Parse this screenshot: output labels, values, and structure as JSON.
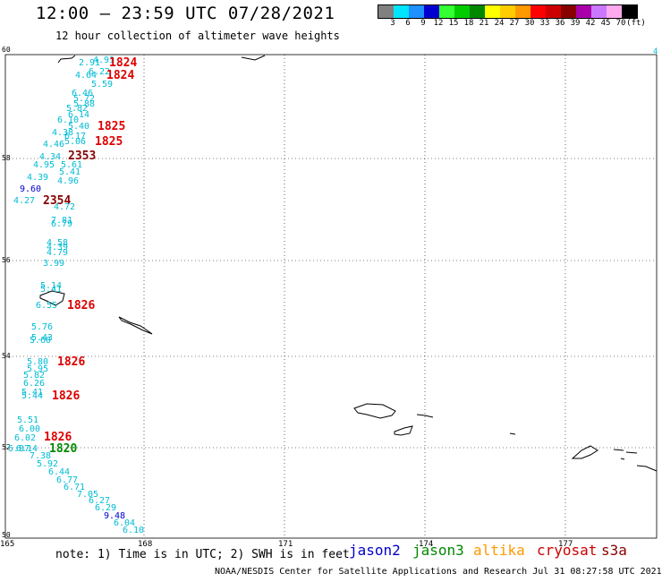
{
  "title": "12:00 – 23:59 UTC 07/28/2021",
  "subtitle": "12 hour collection of altimeter wave heights",
  "colorbar": {
    "colors": [
      "#808080",
      "#00e5ff",
      "#1e90ff",
      "#0000d0",
      "#33ff33",
      "#00cc00",
      "#008800",
      "#ffff00",
      "#ffcc00",
      "#ff9900",
      "#ff0000",
      "#cc0000",
      "#880000",
      "#aa00aa",
      "#cc77ff",
      "#ffaaee",
      "#000000"
    ],
    "labels": [
      "3",
      "6",
      "9",
      "12",
      "15",
      "18",
      "21",
      "24",
      "27",
      "30",
      "33",
      "36",
      "39",
      "42",
      "45",
      "70",
      "(ft)"
    ]
  },
  "axes": {
    "lat_labels": [
      "60",
      "58",
      "56",
      "54",
      "52",
      "50"
    ],
    "lon_labels": [
      "165",
      "168",
      "171",
      "174",
      "177"
    ]
  },
  "edge_label": "4",
  "observations": [
    {
      "text": "2.91",
      "color": "#00bcd4"
    },
    {
      "text": "4.91",
      "color": "#00bcd4"
    },
    {
      "text": "1824",
      "color": "#dd0000"
    },
    {
      "text": "6.22",
      "color": "#00bcd4"
    },
    {
      "text": "4.64",
      "color": "#00bcd4"
    },
    {
      "text": "1824",
      "color": "#dd0000"
    },
    {
      "text": "5.59",
      "color": "#00bcd4"
    },
    {
      "text": "6.46",
      "color": "#00bcd4"
    },
    {
      "text": "5.72",
      "color": "#00bcd4"
    },
    {
      "text": "5.88",
      "color": "#00bcd4"
    },
    {
      "text": "5.82",
      "color": "#00bcd4"
    },
    {
      "text": "6.14",
      "color": "#00bcd4"
    },
    {
      "text": "6.10",
      "color": "#00bcd4"
    },
    {
      "text": "5.40",
      "color": "#00bcd4"
    },
    {
      "text": "1825",
      "color": "#dd0000"
    },
    {
      "text": "4.38",
      "color": "#00bcd4"
    },
    {
      "text": "6.17",
      "color": "#00bcd4"
    },
    {
      "text": "4.46",
      "color": "#00bcd4"
    },
    {
      "text": "5.06",
      "color": "#00bcd4"
    },
    {
      "text": "1825",
      "color": "#dd0000"
    },
    {
      "text": "4.34",
      "color": "#00bcd4"
    },
    {
      "text": "2353",
      "color": "#880000"
    },
    {
      "text": "4.95",
      "color": "#00bcd4"
    },
    {
      "text": "5.61",
      "color": "#00bcd4"
    },
    {
      "text": "5.41",
      "color": "#00bcd4"
    },
    {
      "text": "4.39",
      "color": "#00bcd4"
    },
    {
      "text": "4.96",
      "color": "#00bcd4"
    },
    {
      "text": "9.60",
      "color": "#0000d0"
    },
    {
      "text": "4.27",
      "color": "#00bcd4"
    },
    {
      "text": "2354",
      "color": "#880000"
    },
    {
      "text": "4.72",
      "color": "#00bcd4"
    },
    {
      "text": "7.81",
      "color": "#00bcd4"
    },
    {
      "text": "6.79",
      "color": "#00bcd4"
    },
    {
      "text": "4.58",
      "color": "#00bcd4"
    },
    {
      "text": "4.39",
      "color": "#00bcd4"
    },
    {
      "text": "4.79",
      "color": "#00bcd4"
    },
    {
      "text": "3.99",
      "color": "#00bcd4"
    },
    {
      "text": "5.14",
      "color": "#00bcd4"
    },
    {
      "text": "5.41",
      "color": "#00bcd4"
    },
    {
      "text": "6.55",
      "color": "#00bcd4"
    },
    {
      "text": "1826",
      "color": "#dd0000"
    },
    {
      "text": "5.76",
      "color": "#00bcd4"
    },
    {
      "text": "5.43",
      "color": "#00bcd4"
    },
    {
      "text": "5.60",
      "color": "#00bcd4"
    },
    {
      "text": "5.80",
      "color": "#00bcd4"
    },
    {
      "text": "1826",
      "color": "#dd0000"
    },
    {
      "text": "5.95",
      "color": "#00bcd4"
    },
    {
      "text": "5.82",
      "color": "#00bcd4"
    },
    {
      "text": "6.26",
      "color": "#00bcd4"
    },
    {
      "text": "5.41",
      "color": "#00bcd4"
    },
    {
      "text": "5.44",
      "color": "#00bcd4"
    },
    {
      "text": "1826",
      "color": "#dd0000"
    },
    {
      "text": "5.51",
      "color": "#00bcd4"
    },
    {
      "text": "6.00",
      "color": "#00bcd4"
    },
    {
      "text": "6.02",
      "color": "#00bcd4"
    },
    {
      "text": "1826",
      "color": "#dd0000"
    },
    {
      "text": "5.87",
      "color": "#00bcd4"
    },
    {
      "text": "6.14",
      "color": "#00bcd4"
    },
    {
      "text": "1820",
      "color": "#008800"
    },
    {
      "text": "7.38",
      "color": "#00bcd4"
    },
    {
      "text": "5.92",
      "color": "#00bcd4"
    },
    {
      "text": "6.44",
      "color": "#00bcd4"
    },
    {
      "text": "6.77",
      "color": "#00bcd4"
    },
    {
      "text": "6.71",
      "color": "#00bcd4"
    },
    {
      "text": "7.05",
      "color": "#00bcd4"
    },
    {
      "text": "6.27",
      "color": "#00bcd4"
    },
    {
      "text": "6.29",
      "color": "#00bcd4"
    },
    {
      "text": "9.48",
      "color": "#0000d0"
    },
    {
      "text": "6.04",
      "color": "#00bcd4"
    },
    {
      "text": "6.10",
      "color": "#00bcd4"
    }
  ],
  "note": "note:  1) Time is in UTC; 2) SWH is in feet",
  "legend": [
    {
      "label": "jason2",
      "color": "#0000cc"
    },
    {
      "label": "jason3",
      "color": "#008800"
    },
    {
      "label": "altika",
      "color": "#ff9900"
    },
    {
      "label": "cryosat",
      "color": "#cc0000"
    },
    {
      "label": "s3a",
      "color": "#880000"
    }
  ],
  "credit": "NOAA/NESDIS Center for Satellite Applications and Research    Jul 31 08:27:58 UTC 2021"
}
